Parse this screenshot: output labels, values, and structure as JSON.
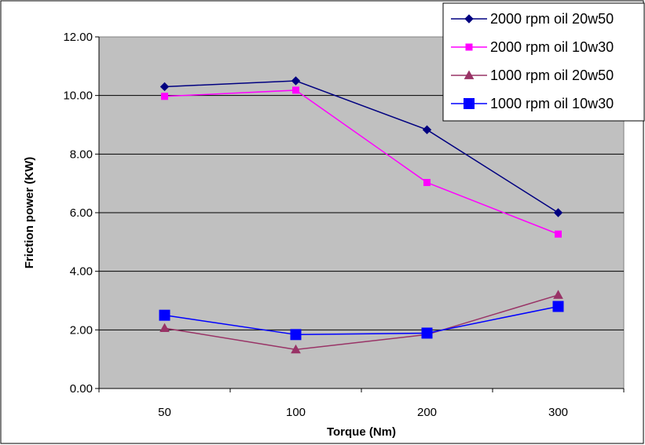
{
  "chart_data": {
    "type": "line",
    "title": "",
    "xlabel": "Torque (Nm)",
    "ylabel": "Friction power (KW)",
    "categories": [
      "50",
      "100",
      "200",
      "300"
    ],
    "ylim": [
      0,
      12
    ],
    "y_ticks": [
      "0.00",
      "2.00",
      "4.00",
      "6.00",
      "8.00",
      "10.00",
      "12.00"
    ],
    "grid": "horizontal",
    "plot_background": "#c0c0c0",
    "legend_position": "top-right",
    "series": [
      {
        "name": "2000 rpm oil 20w50",
        "values": [
          10.3,
          10.5,
          8.83,
          6.0
        ],
        "color": "#000080",
        "marker": "diamond"
      },
      {
        "name": "2000 rpm oil 10w30",
        "values": [
          9.97,
          10.18,
          7.03,
          5.27
        ],
        "color": "#ff00ff",
        "marker": "square"
      },
      {
        "name": "1000 rpm oil 20w50",
        "values": [
          2.06,
          1.33,
          1.84,
          3.19
        ],
        "color": "#993366",
        "marker": "triangle"
      },
      {
        "name": "1000 rpm oil 10w30",
        "values": [
          2.5,
          1.84,
          1.89,
          2.8
        ],
        "color": "#0000ff",
        "marker": "big-square"
      }
    ]
  }
}
